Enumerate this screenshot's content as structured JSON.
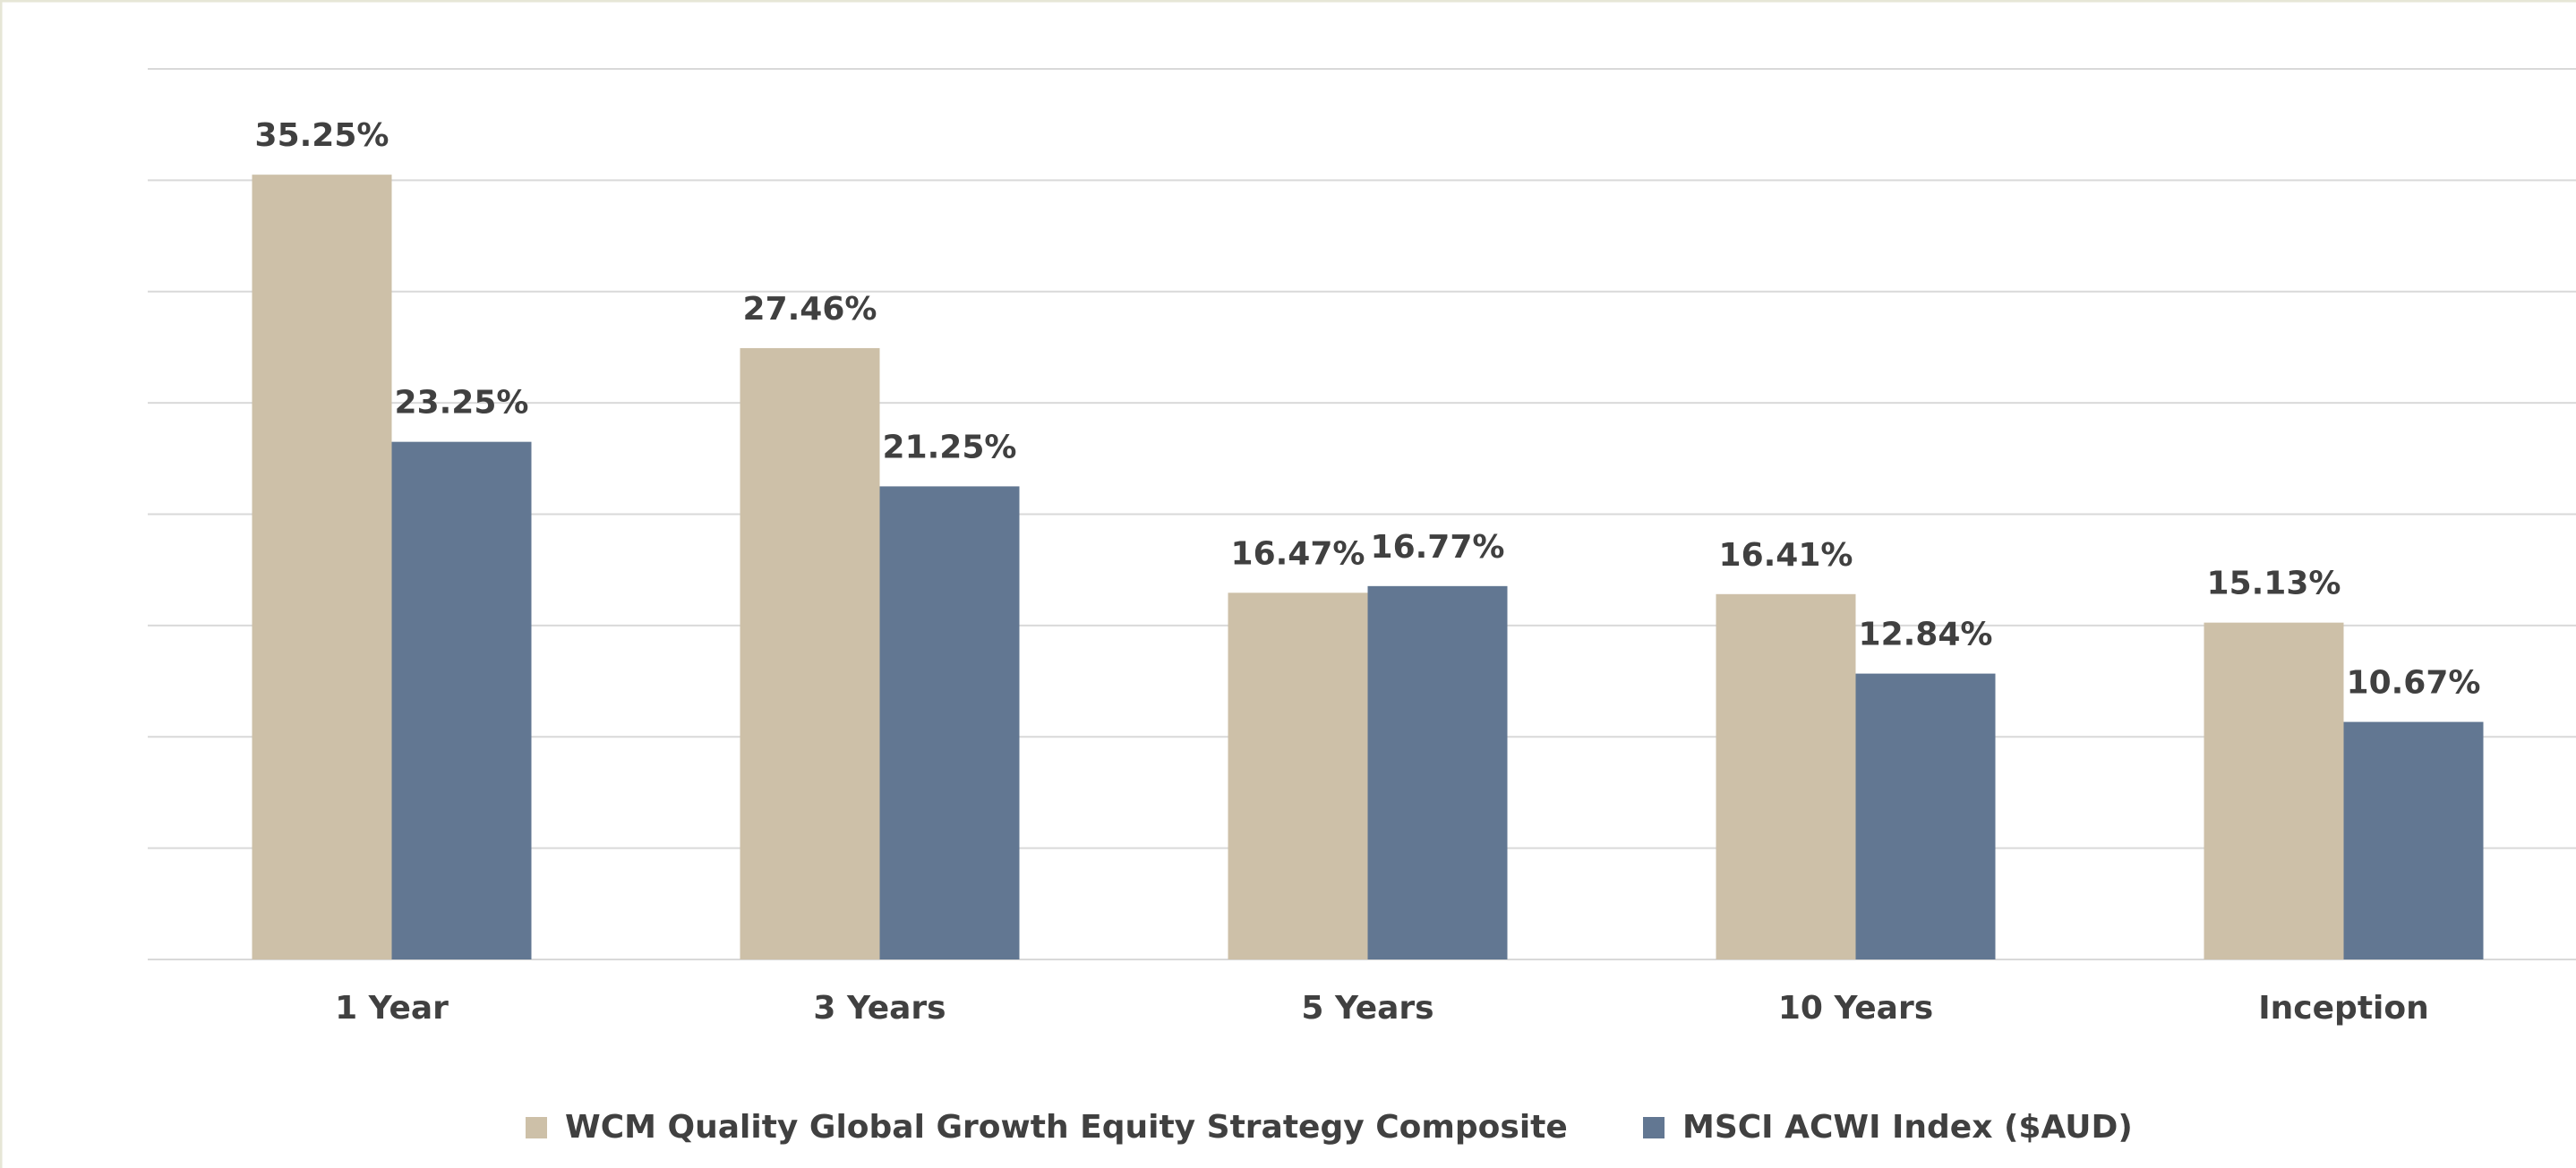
{
  "chart_data": {
    "type": "bar",
    "categories": [
      "1 Year",
      "3 Years",
      "5 Years",
      "10 Years",
      "Inception"
    ],
    "series": [
      {
        "name": "WCM Quality Global Growth Equity Strategy Composite",
        "color": "#cdc0a8",
        "values": [
          35.25,
          27.46,
          16.47,
          16.41,
          15.13
        ],
        "value_labels": [
          "35.25%",
          "27.46%",
          "16.47%",
          "16.41%",
          "15.13%"
        ]
      },
      {
        "name": "MSCI ACWI Index ($AUD)",
        "color": "#627792",
        "values": [
          23.25,
          21.25,
          16.77,
          12.84,
          10.67
        ],
        "value_labels": [
          "23.25%",
          "21.25%",
          "16.77%",
          "12.84%",
          "10.67%"
        ]
      }
    ],
    "ylim": [
      0,
      40
    ],
    "yticks": [
      0,
      5,
      10,
      15,
      20,
      25,
      30,
      35,
      40
    ],
    "grid": true,
    "legend": "bottom"
  }
}
